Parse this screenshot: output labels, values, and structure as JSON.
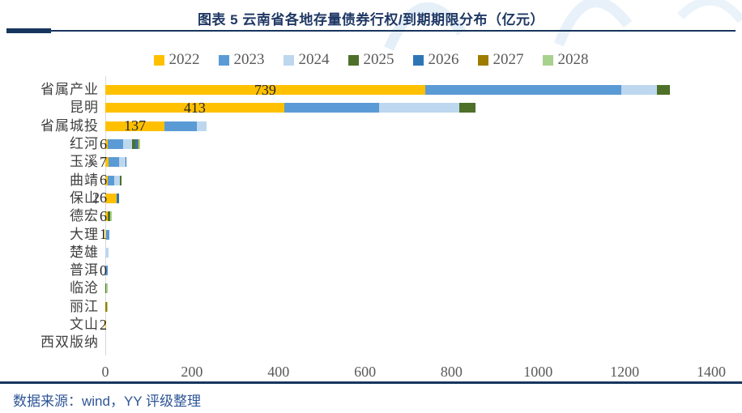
{
  "header": {
    "title": "图表 5 云南省各地存量债券行权/到期期限分布（亿元）"
  },
  "footer": {
    "source": "数据来源：wind，YY 评级整理"
  },
  "colors": {
    "title_text": "#1F3864",
    "rule": "#17365D",
    "source_text": "#2E5597",
    "axis_text": "#595959",
    "category_text": "#404040",
    "value_text": "#262626",
    "zero_line": "#D9D9D9",
    "watermark": "#5B9BD5"
  },
  "chart_data": {
    "type": "bar",
    "orientation": "horizontal",
    "stacked": true,
    "title": "图表 5 云南省各地存量债券行权/到期期限分布（亿元）",
    "unit": "亿元",
    "legend_position": "top",
    "grid": false,
    "xlim": [
      0,
      1400
    ],
    "xticks": [
      0,
      200,
      400,
      600,
      800,
      1000,
      1200,
      1400
    ],
    "categories": [
      "省属产业",
      "昆明",
      "省属城投",
      "红河",
      "玉溪",
      "曲靖",
      "保山",
      "德宏",
      "大理",
      "楚雄",
      "普洱",
      "临沧",
      "丽江",
      "文山",
      "西双版纳"
    ],
    "series": [
      {
        "name": "2022",
        "color": "#FFC000",
        "values": [
          739,
          413,
          137,
          6,
          7,
          6,
          26,
          6,
          1,
          0,
          0,
          0,
          0,
          2,
          0
        ]
      },
      {
        "name": "2023",
        "color": "#5B9BD5",
        "values": [
          454,
          220,
          75,
          35,
          25,
          14,
          0,
          0,
          9,
          0,
          5,
          0,
          0,
          0,
          0
        ]
      },
      {
        "name": "2024",
        "color": "#BDD7EE",
        "values": [
          82,
          185,
          22,
          21,
          15,
          13,
          0,
          0,
          0,
          8,
          0,
          0,
          0,
          0,
          0
        ]
      },
      {
        "name": "2025",
        "color": "#4E7029",
        "values": [
          29,
          38,
          0,
          8,
          0,
          4,
          0,
          5,
          0,
          0,
          0,
          2,
          0,
          0,
          0
        ]
      },
      {
        "name": "2026",
        "color": "#2E75B6",
        "values": [
          0,
          0,
          0,
          4,
          2,
          0,
          6,
          0,
          0,
          0,
          0,
          0,
          0,
          0,
          0
        ]
      },
      {
        "name": "2027",
        "color": "#9E7C00",
        "values": [
          0,
          0,
          0,
          3,
          0,
          0,
          0,
          0,
          0,
          0,
          0,
          0,
          3,
          0,
          0
        ]
      },
      {
        "name": "2028",
        "color": "#A9D18E",
        "values": [
          0,
          0,
          0,
          3,
          0,
          0,
          0,
          4,
          0,
          0,
          0,
          4,
          3,
          0,
          0
        ]
      }
    ],
    "value_labels": [
      "739",
      "413",
      "137",
      "6",
      "7",
      "6",
      "26",
      "6",
      "1",
      "",
      "0",
      "",
      "",
      "2",
      ""
    ]
  }
}
